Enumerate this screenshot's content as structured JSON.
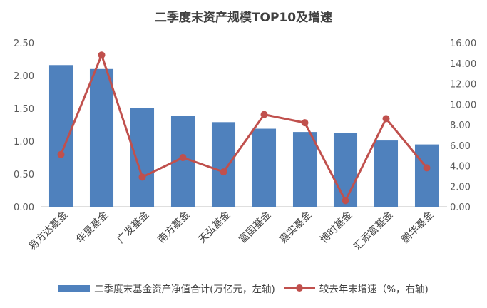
{
  "chart_data": {
    "type": "bar+line",
    "title": "二季度末资产规模TOP10及增速",
    "categories": [
      "易方达基金",
      "华夏基金",
      "广发基金",
      "南方基金",
      "天弘基金",
      "富国基金",
      "嘉实基金",
      "博时基金",
      "汇添富基金",
      "鹏华基金"
    ],
    "series": [
      {
        "name": "二季度末基金资产净值合计(万亿元，左轴)",
        "type": "bar",
        "axis": "left",
        "color": "#4F81BD",
        "values": [
          2.16,
          2.1,
          1.51,
          1.39,
          1.29,
          1.19,
          1.14,
          1.13,
          1.01,
          0.95
        ]
      },
      {
        "name": "较去年末增速（%，右轴)",
        "type": "line",
        "axis": "right",
        "color": "#C0504D",
        "values": [
          5.1,
          14.8,
          2.9,
          4.8,
          3.4,
          9.0,
          8.2,
          0.6,
          8.6,
          3.8
        ]
      }
    ],
    "y_left": {
      "min": 0,
      "max": 2.5,
      "step": 0.5,
      "tick_labels": [
        "0.00",
        "0.50",
        "1.00",
        "1.50",
        "2.00",
        "2.50"
      ]
    },
    "y_right": {
      "min": 0,
      "max": 16,
      "step": 2,
      "tick_labels": [
        "0.00",
        "2.00",
        "4.00",
        "6.00",
        "8.00",
        "10.00",
        "12.00",
        "14.00",
        "16.00"
      ]
    },
    "grid": false,
    "legend_position": "bottom"
  }
}
